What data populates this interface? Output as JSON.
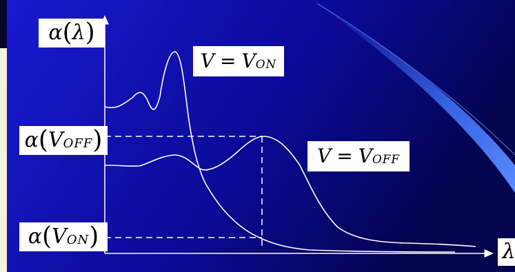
{
  "diagram": {
    "y_axis_label": {
      "symbol": "α",
      "argument": "λ"
    },
    "x_axis_label": "λ",
    "level_off_label": {
      "symbol": "α",
      "var": "V",
      "sub": "OFF"
    },
    "level_on_label": {
      "symbol": "α",
      "var": "V",
      "sub": "ON"
    },
    "curve_on_label": {
      "lhs": "V",
      "eq": "=",
      "var": "V",
      "sub": "ON"
    },
    "curve_off_label": {
      "lhs": "V",
      "eq": "=",
      "var": "V",
      "sub": "OFF"
    }
  },
  "colors": {
    "panel_gradient_start": "#1616c8",
    "panel_gradient_end": "#050560",
    "frame": "#f4f1dd",
    "ink": "#ffffff",
    "label_bg": "#ffffff"
  }
}
